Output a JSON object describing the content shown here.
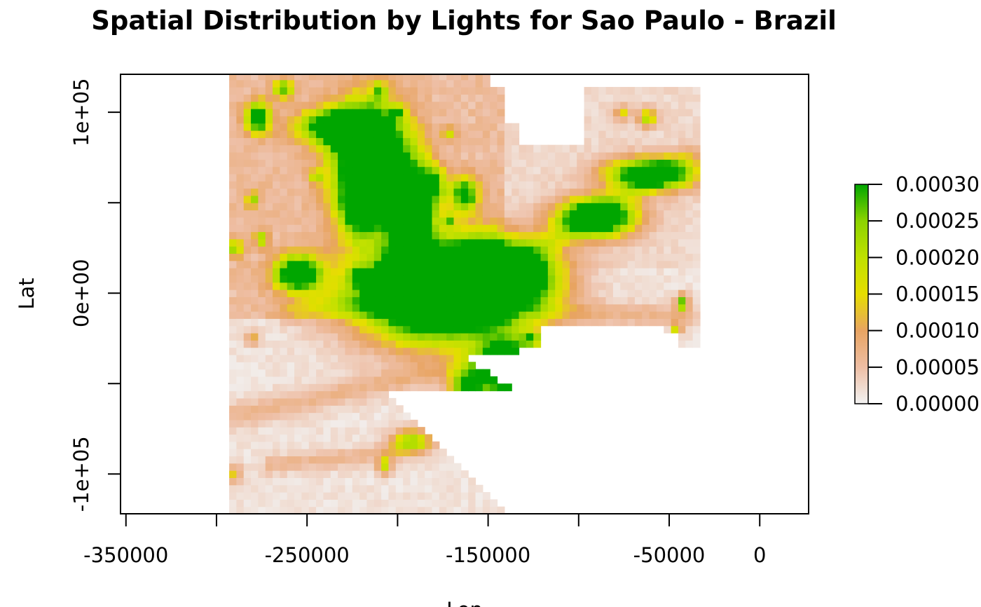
{
  "chart_data": {
    "type": "heatmap",
    "title": "Spatial Distribution by Lights for Sao Paulo - Brazil",
    "xlabel": "Lon",
    "ylabel": "Lat",
    "xlim": [
      -353000,
      27000
    ],
    "ylim": [
      -122000,
      121000
    ],
    "x_ticks": [
      -350000,
      -300000,
      -250000,
      -200000,
      -150000,
      -100000,
      -50000,
      0
    ],
    "x_tick_labels": [
      "-350000",
      "",
      "-250000",
      "",
      "-150000",
      "",
      "-50000",
      "0"
    ],
    "y_ticks": [
      -100000,
      -50000,
      0,
      50000,
      100000
    ],
    "y_tick_labels": [
      "-1e+05",
      "",
      "0e+00",
      "",
      "1e+05"
    ],
    "legend": {
      "position": "right",
      "min": 0.0,
      "max": 0.0003,
      "ticks": [
        0.0,
        5e-05,
        0.0001,
        0.00015,
        0.0002,
        0.00025,
        0.0003
      ],
      "tick_labels": [
        "0.00000",
        "0.00005",
        "0.00010",
        "0.00015",
        "0.00020",
        "0.00025",
        "0.00030"
      ],
      "colors": [
        "#F2F2F2",
        "#EEBEA4",
        "#E8A462",
        "#E6DE00",
        "#BFE100",
        "#8CD300",
        "#00A600"
      ]
    },
    "raster": {
      "x_extent": [
        -293000,
        -33000
      ],
      "y_extent": [
        -122000,
        121000
      ],
      "hotspots": [
        {
          "x": -175000,
          "y": 0,
          "rx": 48000,
          "ry": 27000,
          "value": 0.0006
        },
        {
          "x": -145000,
          "y": 10000,
          "rx": 30000,
          "ry": 18000,
          "value": 0.0005
        },
        {
          "x": -193000,
          "y": 40000,
          "rx": 12000,
          "ry": 35000,
          "value": 0.00045
        },
        {
          "x": -216000,
          "y": 75000,
          "rx": 20000,
          "ry": 30000,
          "value": 0.0005
        },
        {
          "x": -232000,
          "y": 92000,
          "rx": 22000,
          "ry": 10000,
          "value": 0.0004
        },
        {
          "x": -205000,
          "y": 50000,
          "rx": 22000,
          "ry": 10000,
          "value": 0.0003
        },
        {
          "x": -140000,
          "y": -42000,
          "rx": 17000,
          "ry": 16000,
          "value": 0.0005
        },
        {
          "x": -162000,
          "y": -52000,
          "rx": 9000,
          "ry": 10000,
          "value": 0.0003
        },
        {
          "x": -90000,
          "y": 42000,
          "rx": 22000,
          "ry": 11000,
          "value": 0.00045
        },
        {
          "x": -60000,
          "y": 66000,
          "rx": 25000,
          "ry": 9000,
          "value": 0.0004
        },
        {
          "x": -255000,
          "y": 11000,
          "rx": 13000,
          "ry": 10000,
          "value": 0.0004
        },
        {
          "x": -277000,
          "y": 97000,
          "rx": 7000,
          "ry": 9000,
          "value": 0.00035
        },
        {
          "x": -263000,
          "y": 113000,
          "rx": 6000,
          "ry": 6000,
          "value": 0.00022
        },
        {
          "x": -180000,
          "y": 61000,
          "rx": 7000,
          "ry": 10000,
          "value": 0.00022
        },
        {
          "x": -163000,
          "y": 55000,
          "rx": 8000,
          "ry": 10000,
          "value": 0.0003
        },
        {
          "x": -220000,
          "y": 44000,
          "rx": 12000,
          "ry": 16000,
          "value": 0.00022
        },
        {
          "x": -205000,
          "y": 7000,
          "rx": 9000,
          "ry": 9000,
          "value": 0.00022
        },
        {
          "x": -222000,
          "y": 9000,
          "rx": 5000,
          "ry": 5000,
          "value": 0.00018
        },
        {
          "x": -290000,
          "y": 25000,
          "rx": 5000,
          "ry": 5000,
          "value": 0.00018
        },
        {
          "x": -280000,
          "y": 52000,
          "rx": 4000,
          "ry": 5000,
          "value": 0.00018
        },
        {
          "x": -275000,
          "y": 30000,
          "rx": 4000,
          "ry": 5000,
          "value": 0.00018
        },
        {
          "x": -245000,
          "y": 65000,
          "rx": 4000,
          "ry": 4000,
          "value": 0.00015
        },
        {
          "x": -172000,
          "y": 40000,
          "rx": 4000,
          "ry": 4000,
          "value": 0.00015
        },
        {
          "x": -126000,
          "y": -25000,
          "rx": 6000,
          "ry": 4000,
          "value": 0.00018
        },
        {
          "x": -43000,
          "y": -5000,
          "rx": 3500,
          "ry": 5000,
          "value": 0.00025
        },
        {
          "x": -46000,
          "y": -20000,
          "rx": 3000,
          "ry": 4000,
          "value": 0.00018
        },
        {
          "x": -60000,
          "y": -20000,
          "rx": 5000,
          "ry": 3000,
          "value": 0.00015
        },
        {
          "x": -62000,
          "y": 97000,
          "rx": 5000,
          "ry": 5000,
          "value": 0.0002
        },
        {
          "x": -76000,
          "y": 100000,
          "rx": 5000,
          "ry": 4000,
          "value": 0.00012
        },
        {
          "x": -200000,
          "y": 100000,
          "rx": 5000,
          "ry": 4000,
          "value": 0.00015
        },
        {
          "x": -210000,
          "y": 112000,
          "rx": 4000,
          "ry": 6000,
          "value": 0.00015
        },
        {
          "x": -172000,
          "y": 88000,
          "rx": 4000,
          "ry": 4000,
          "value": 0.00012
        },
        {
          "x": -192000,
          "y": -82000,
          "rx": 12000,
          "ry": 7000,
          "value": 0.00022
        },
        {
          "x": -207000,
          "y": -95000,
          "rx": 4000,
          "ry": 5000,
          "value": 0.00018
        },
        {
          "x": -290000,
          "y": -100000,
          "rx": 4000,
          "ry": 5000,
          "value": 0.00012
        },
        {
          "x": -280000,
          "y": -25000,
          "rx": 4000,
          "ry": 4000,
          "value": 0.0001
        }
      ],
      "corridors": [
        {
          "from": [
            -300000,
            -70000
          ],
          "to": [
            -140000,
            -35000
          ],
          "width": 7000,
          "value": 5e-05
        },
        {
          "from": [
            -270000,
            -95000
          ],
          "to": [
            -200000,
            -88000
          ],
          "width": 5000,
          "value": 5e-05
        },
        {
          "from": [
            -260000,
            -10000
          ],
          "to": [
            -175000,
            0
          ],
          "width": 6000,
          "value": 6e-05
        },
        {
          "from": [
            -130000,
            20000
          ],
          "to": [
            -40000,
            75000
          ],
          "width": 7000,
          "value": 7e-05
        },
        {
          "from": [
            -120000,
            -10000
          ],
          "to": [
            -40000,
            -12000
          ],
          "width": 6000,
          "value": 5e-05
        }
      ]
    }
  }
}
